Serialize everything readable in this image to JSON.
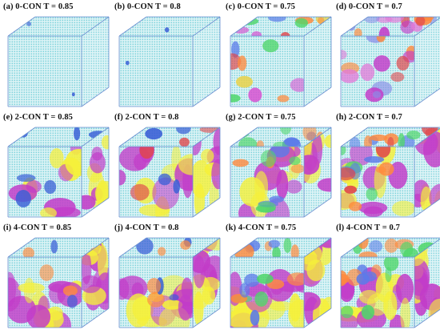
{
  "figure": {
    "panels": [
      {
        "caption": "(a) 0-CON  T = 0.85",
        "colors": [
          "#3a5fd6"
        ],
        "coverage": 0.0,
        "walls": false,
        "wallCoverage": 0.0
      },
      {
        "caption": "(b) 0-CON  T = 0.8",
        "colors": [
          "#3a5fd6"
        ],
        "coverage": 0.0,
        "walls": false,
        "wallCoverage": 0.0
      },
      {
        "caption": "(c) 0-CON  T = 0.75",
        "colors": [
          "#d84fd0",
          "#ff8a3d",
          "#4fd66a",
          "#5b7be8",
          "#e8d24a",
          "#e0454a"
        ],
        "coverage": 0.35,
        "walls": false,
        "wallCoverage": 0.0
      },
      {
        "caption": "(d) 0-CON  T = 0.7",
        "colors": [
          "#c23cc8",
          "#e27ad8",
          "#8a8ee6",
          "#ff8a3d",
          "#e0454a"
        ],
        "coverage": 0.6,
        "walls": false,
        "wallCoverage": 0.0
      },
      {
        "caption": "(e) 2-CON  T = 0.85",
        "colors": [
          "#c23cc8",
          "#f5f03a",
          "#3a5fd6"
        ],
        "coverage": 0.1,
        "walls": true,
        "wallCoverage": 0.45
      },
      {
        "caption": "(f) 2-CON  T = 0.8",
        "colors": [
          "#c23cc8",
          "#f5f03a",
          "#3a5fd6",
          "#e0454a"
        ],
        "coverage": 0.15,
        "walls": true,
        "wallCoverage": 0.5
      },
      {
        "caption": "(g) 2-CON  T = 0.75",
        "colors": [
          "#c23cc8",
          "#f5f03a",
          "#4fd66a",
          "#5b7be8",
          "#ff8a3d"
        ],
        "coverage": 0.4,
        "walls": true,
        "wallCoverage": 0.55
      },
      {
        "caption": "(h) 2-CON  T = 0.7",
        "colors": [
          "#c23cc8",
          "#f5f03a",
          "#4fd66a",
          "#5b7be8",
          "#ff8a3d",
          "#e0454a"
        ],
        "coverage": 0.5,
        "walls": true,
        "wallCoverage": 0.6
      },
      {
        "caption": "(i) 4-CON  T = 0.85",
        "colors": [
          "#c23cc8",
          "#f5f03a",
          "#ff8a3d",
          "#3a5fd6"
        ],
        "coverage": 0.1,
        "walls": true,
        "wallCoverage": 0.8
      },
      {
        "caption": "(j) 4-CON  T = 0.8",
        "colors": [
          "#c23cc8",
          "#f5f03a",
          "#ff8a3d",
          "#3a5fd6"
        ],
        "coverage": 0.15,
        "walls": true,
        "wallCoverage": 0.8
      },
      {
        "caption": "(k) 4-CON  T = 0.75",
        "colors": [
          "#c23cc8",
          "#f5f03a",
          "#4fd66a",
          "#ff8a3d",
          "#5b7be8"
        ],
        "coverage": 0.35,
        "walls": true,
        "wallCoverage": 0.85
      },
      {
        "caption": "(l) 4-CON  T = 0.7",
        "colors": [
          "#c23cc8",
          "#f5f03a",
          "#4fd66a",
          "#ff8a3d",
          "#5b7be8"
        ],
        "coverage": 0.45,
        "walls": true,
        "wallCoverage": 0.85
      }
    ],
    "base_color": "#7fd3dc",
    "edge_color": "#6a8fd0"
  }
}
